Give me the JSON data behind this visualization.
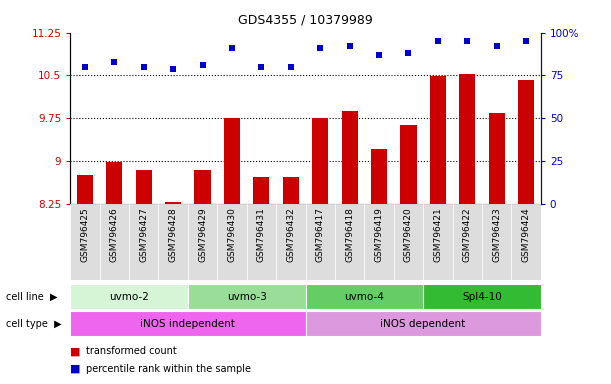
{
  "title": "GDS4355 / 10379989",
  "samples": [
    "GSM796425",
    "GSM796426",
    "GSM796427",
    "GSM796428",
    "GSM796429",
    "GSM796430",
    "GSM796431",
    "GSM796432",
    "GSM796417",
    "GSM796418",
    "GSM796419",
    "GSM796420",
    "GSM796421",
    "GSM796422",
    "GSM796423",
    "GSM796424"
  ],
  "bar_values": [
    8.75,
    8.98,
    8.84,
    8.28,
    8.84,
    9.75,
    8.72,
    8.72,
    9.75,
    9.88,
    9.2,
    9.62,
    10.48,
    10.53,
    9.84,
    10.42
  ],
  "dot_values": [
    80,
    83,
    80,
    79,
    81,
    91,
    80,
    80,
    91,
    92,
    87,
    88,
    95,
    95,
    92,
    95
  ],
  "ylim_left": [
    8.25,
    11.25
  ],
  "ylim_right": [
    0,
    100
  ],
  "yticks_left": [
    8.25,
    9.0,
    9.75,
    10.5,
    11.25
  ],
  "yticks_left_labels": [
    "8.25",
    "9",
    "9.75",
    "10.5",
    "11.25"
  ],
  "yticks_right": [
    0,
    25,
    50,
    75,
    100
  ],
  "yticks_right_labels": [
    "0",
    "25",
    "50",
    "75",
    "100%"
  ],
  "cell_lines": [
    {
      "label": "uvmo-2",
      "start": 0,
      "end": 4,
      "color": "#d6f5d6"
    },
    {
      "label": "uvmo-3",
      "start": 4,
      "end": 8,
      "color": "#99dd99"
    },
    {
      "label": "uvmo-4",
      "start": 8,
      "end": 12,
      "color": "#66cc66"
    },
    {
      "label": "Spl4-10",
      "start": 12,
      "end": 16,
      "color": "#33bb33"
    }
  ],
  "cell_types": [
    {
      "label": "iNOS independent",
      "start": 0,
      "end": 8,
      "color": "#ee66ee"
    },
    {
      "label": "iNOS dependent",
      "start": 8,
      "end": 16,
      "color": "#dd99dd"
    }
  ],
  "bar_color": "#cc0000",
  "dot_color": "#0000cc",
  "left_axis_color": "#cc0000",
  "right_axis_color": "#0000cc",
  "grid_vals": [
    9.0,
    9.75,
    10.5
  ],
  "bg_color": "#ffffff",
  "xtick_bg": "#dddddd"
}
